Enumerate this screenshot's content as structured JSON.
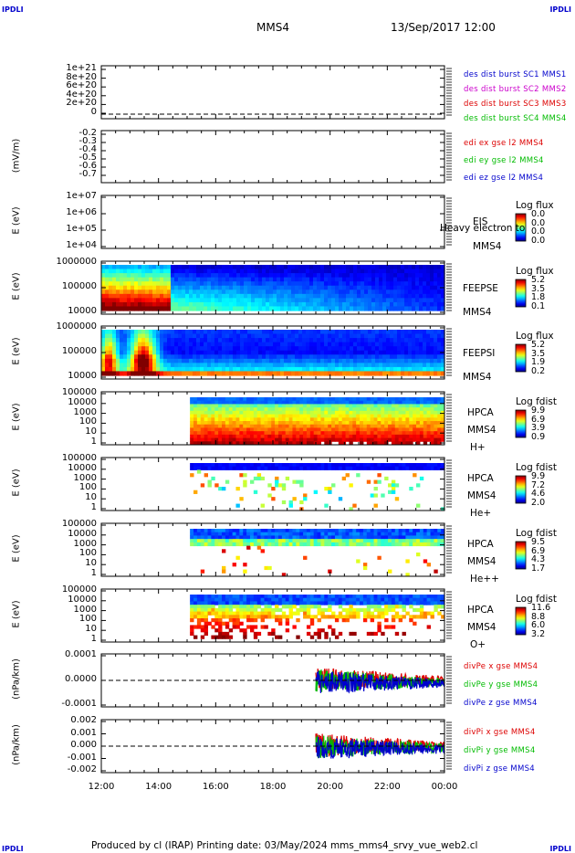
{
  "corners": {
    "tl": "IPDLI",
    "tr": "IPDLI",
    "bl": "IPDLI",
    "br": "IPDLI"
  },
  "header": {
    "spacecraft": "MMS4",
    "date_time": "13/Sep/2017 12:00"
  },
  "footer": {
    "text": "Produced by cl (IRAP)   Printing date: 03/May/2024   mms_mms4_srvy_vue_web2.cl"
  },
  "colors": {
    "mms1": "#0000cc",
    "mms2": "#cc00cc",
    "mms3": "#dd0000",
    "mms4": "#00bb00",
    "x": "#dd0000",
    "y": "#00bb00",
    "z": "#0000cc"
  },
  "chart_data": [
    {
      "type": "line",
      "panel": "des_density",
      "ylabel": "",
      "yticks": [
        "1e+21",
        "8e+20",
        "6e+20",
        "4e+20",
        "2e+20",
        "0"
      ],
      "ylim": [
        0,
        1.1e+21
      ],
      "legend": [
        "des dist burst SC1 MMS1",
        "des dist burst SC2 MMS2",
        "des dist burst SC3 MMS3",
        "des dist burst SC4 MMS4"
      ],
      "series": [],
      "reference_line": 0
    },
    {
      "type": "line",
      "panel": "edi_e",
      "ylabel": "(mV/m)",
      "yticks": [
        "-0.2",
        "-0.3",
        "-0.4",
        "-0.5",
        "-0.6",
        "-0.7"
      ],
      "ylim": [
        -0.75,
        -0.15
      ],
      "legend": [
        "edi ex gse l2 MMS4",
        "edi ey gse l2 MMS4",
        "edi ez gse l2 MMS4"
      ],
      "series": []
    },
    {
      "type": "heatmap",
      "panel": "eis",
      "ylabel": "E (eV)",
      "yticks": [
        "1e+07",
        "1e+06",
        "1e+05",
        "1e+04"
      ],
      "instrument": [
        "EIS",
        "MMS4"
      ],
      "overlay_text": "Heavy electron to",
      "colorbar": {
        "title": "Log flux",
        "values": [
          "0.0",
          "0.0",
          "0.0",
          "0.0"
        ]
      }
    },
    {
      "type": "heatmap",
      "panel": "feeps_e",
      "ylabel": "E (eV)",
      "yticks": [
        "1000000",
        "100000",
        "10000"
      ],
      "instrument": [
        "FEEPSE",
        "MMS4"
      ],
      "colorbar": {
        "title": "Log flux",
        "values": [
          "5.2",
          "3.5",
          "1.8",
          "0.1"
        ]
      }
    },
    {
      "type": "heatmap",
      "panel": "feeps_i",
      "ylabel": "E (eV)",
      "yticks": [
        "1000000",
        "100000",
        "10000"
      ],
      "instrument": [
        "FEEPSI",
        "MMS4"
      ],
      "colorbar": {
        "title": "Log flux",
        "values": [
          "5.2",
          "3.5",
          "1.9",
          "0.2"
        ]
      }
    },
    {
      "type": "heatmap",
      "panel": "hpca_h",
      "ylabel": "E (eV)",
      "yticks": [
        "100000",
        "10000",
        "1000",
        "100",
        "10",
        "1"
      ],
      "instrument": [
        "HPCA",
        "MMS4",
        "H+"
      ],
      "colorbar": {
        "title": "Log fdist",
        "values": [
          "9.9",
          "6.9",
          "3.9",
          "0.9"
        ]
      }
    },
    {
      "type": "heatmap",
      "panel": "hpca_he",
      "ylabel": "E (eV)",
      "yticks": [
        "100000",
        "10000",
        "1000",
        "100",
        "10",
        "1"
      ],
      "instrument": [
        "HPCA",
        "MMS4",
        "He+"
      ],
      "colorbar": {
        "title": "Log fdist",
        "values": [
          "9.9",
          "7.2",
          "4.6",
          "2.0"
        ]
      }
    },
    {
      "type": "heatmap",
      "panel": "hpca_hepp",
      "ylabel": "E (eV)",
      "yticks": [
        "100000",
        "10000",
        "1000",
        "100",
        "10",
        "1"
      ],
      "instrument": [
        "HPCA",
        "MMS4",
        "He++"
      ],
      "colorbar": {
        "title": "Log fdist",
        "values": [
          "9.5",
          "6.9",
          "4.3",
          "1.7"
        ]
      }
    },
    {
      "type": "heatmap",
      "panel": "hpca_o",
      "ylabel": "E (eV)",
      "yticks": [
        "100000",
        "10000",
        "1000",
        "100",
        "10",
        "1"
      ],
      "instrument": [
        "HPCA",
        "MMS4",
        "O+"
      ],
      "colorbar": {
        "title": "Log fdist",
        "values": [
          "11.6",
          "8.8",
          "6.0",
          "3.2"
        ]
      }
    },
    {
      "type": "line",
      "panel": "divpe",
      "ylabel": "(nPa/km)",
      "yticks": [
        "0.0001",
        "0.0000",
        "-0.0001"
      ],
      "ylim": [
        -0.00013,
        0.00013
      ],
      "legend": [
        "divPe x gse MMS4",
        "divPe y gse MMS4",
        "divPe z gse MMS4"
      ],
      "start_hour": 19.5,
      "reference_line": 0
    },
    {
      "type": "line",
      "panel": "divpi",
      "ylabel": "(nPa/km)",
      "yticks": [
        "0.002",
        "0.001",
        "0.000",
        "-0.001",
        "-0.002"
      ],
      "ylim": [
        -0.0022,
        0.0022
      ],
      "legend": [
        "divPi x gse MMS4",
        "divPi y gse MMS4",
        "divPi z gse MMS4"
      ],
      "start_hour": 19.5,
      "reference_line": 0
    }
  ],
  "xaxis": {
    "labels": [
      "12:00",
      "14:00",
      "16:00",
      "18:00",
      "20:00",
      "22:00",
      "00:00"
    ],
    "range_hours": [
      12,
      24
    ]
  }
}
